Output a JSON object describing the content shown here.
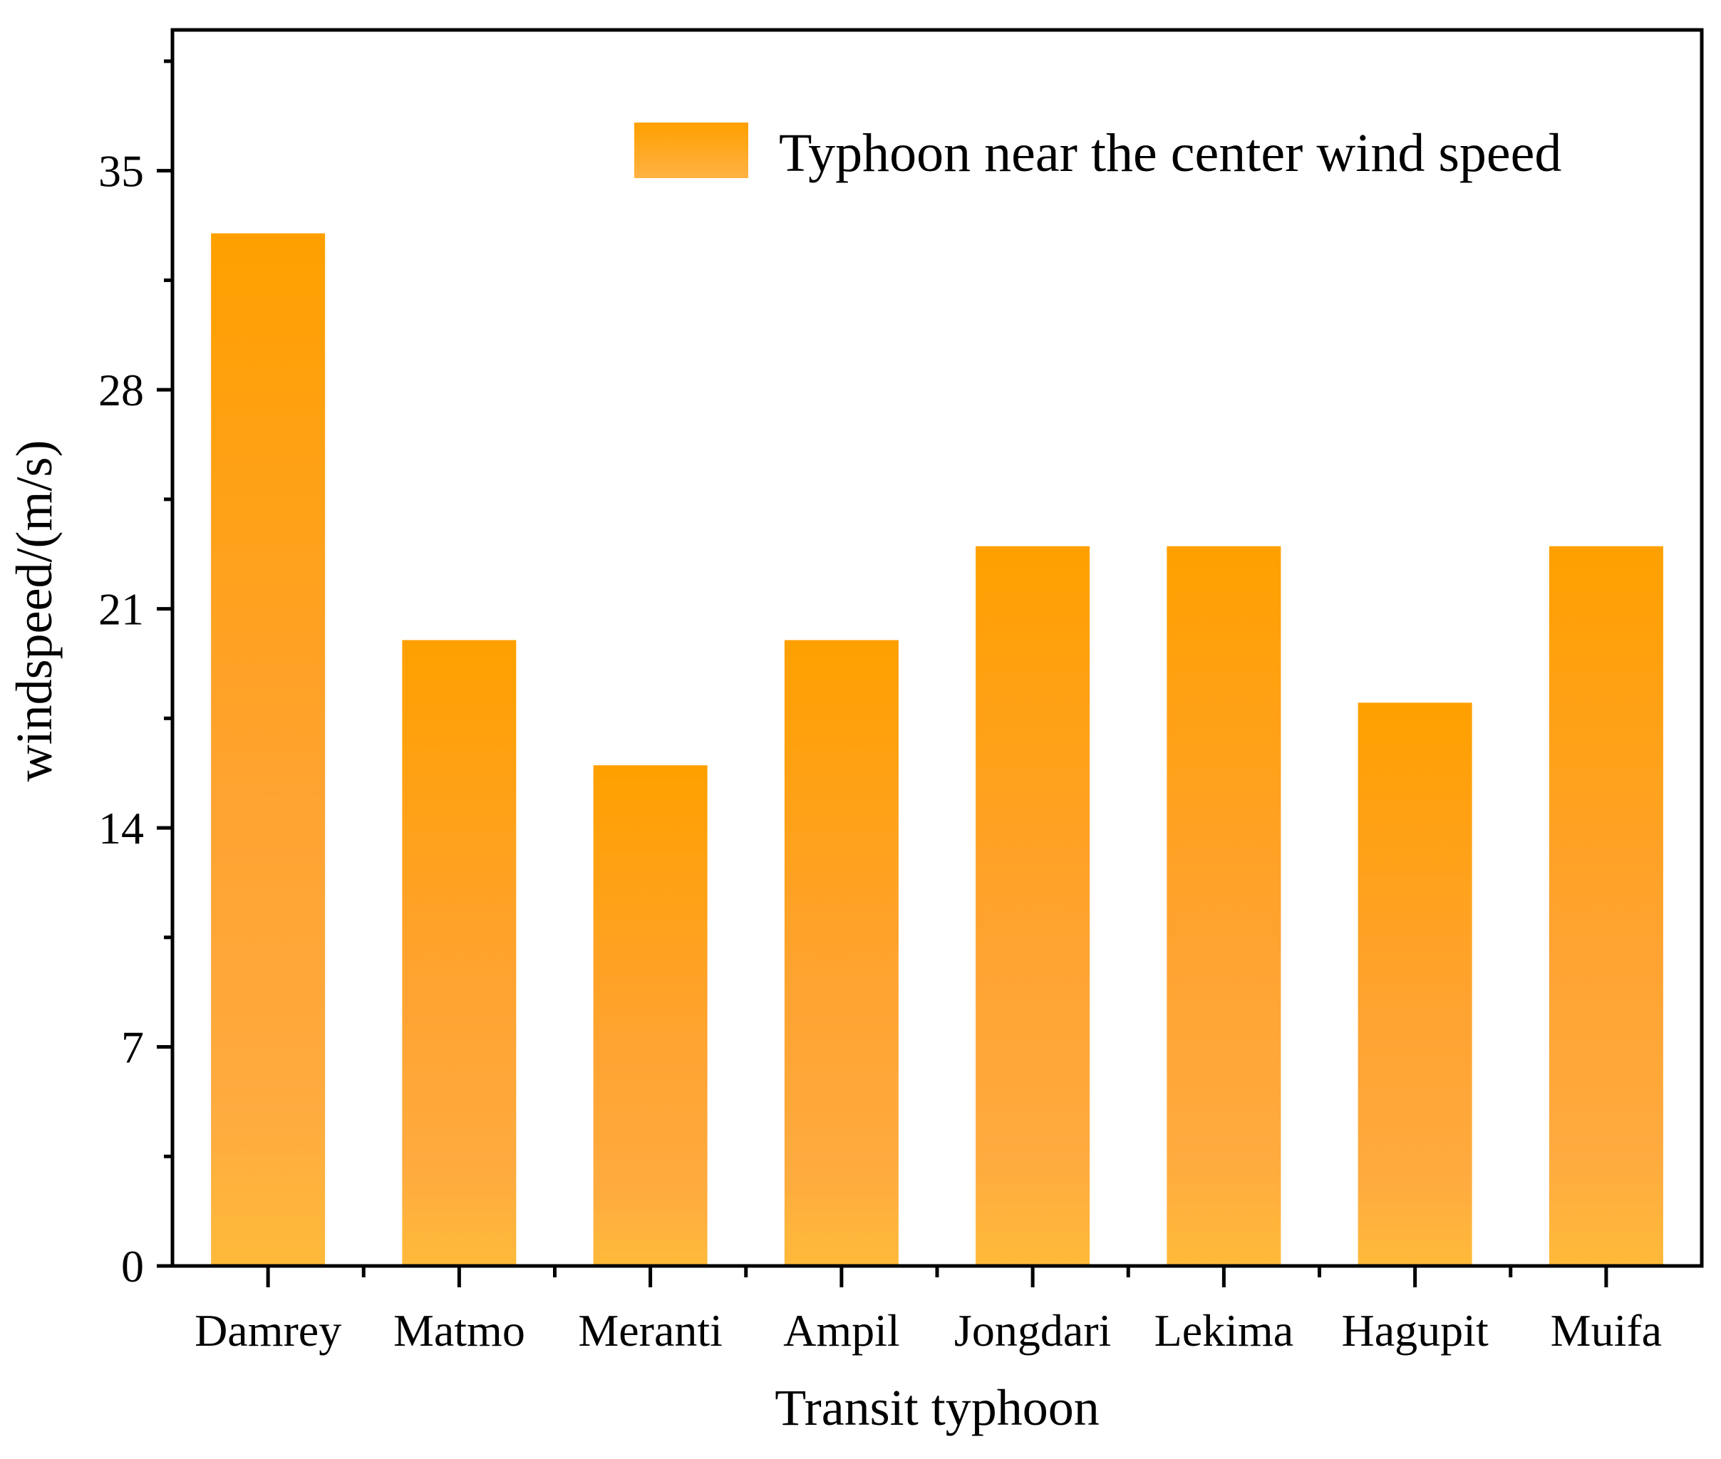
{
  "chart_data": {
    "type": "bar",
    "title": "",
    "xlabel": "Transit typhoon",
    "ylabel": "windspeed/(m/s)",
    "categories": [
      "Damrey",
      "Matmo",
      "Meranti",
      "Ampil",
      "Jongdari",
      "Lekima",
      "Hagupit",
      "Muifa"
    ],
    "series": [
      {
        "name": "Typhoon near the center wind speed",
        "values": [
          33,
          20,
          16,
          20,
          23,
          23,
          18,
          23
        ]
      }
    ],
    "ylim": [
      0,
      39.5
    ],
    "yticks": [
      0,
      7,
      14,
      21,
      28,
      35
    ],
    "ytick_labels": [
      "0",
      "7",
      "14",
      "21",
      "28",
      "35"
    ],
    "grid": false,
    "legend_position": "top-right",
    "colors": {
      "bar_top": "#FFA200",
      "bar_bottom": "#FFBA3A",
      "axis": "#000000"
    }
  }
}
